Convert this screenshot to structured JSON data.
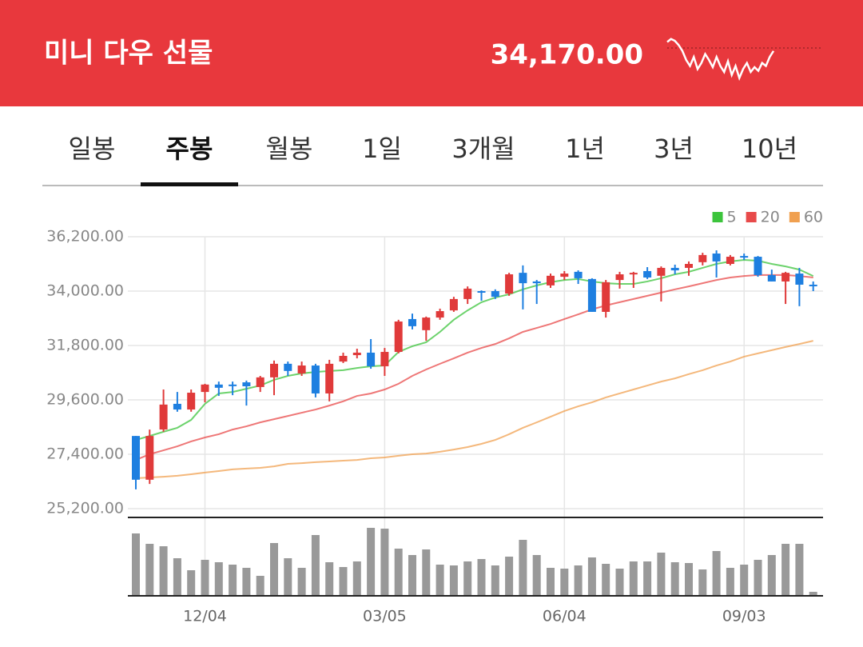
{
  "header": {
    "title": "미니 다우 선물",
    "price": "34,170.00",
    "sparkline": {
      "color": "#ffffff",
      "values": [
        70,
        75,
        72,
        65,
        55,
        40,
        30,
        45,
        25,
        35,
        50,
        40,
        28,
        45,
        30,
        20,
        38,
        15,
        30,
        10,
        25,
        35,
        20,
        28,
        22,
        35,
        30,
        45,
        55
      ],
      "reference": 60,
      "ylim": [
        0,
        100
      ]
    }
  },
  "tabs": {
    "items": [
      "일봉",
      "주봉",
      "월봉",
      "1일",
      "3개월",
      "1년",
      "3년",
      "10년"
    ],
    "selected": 1
  },
  "chart_data": {
    "type": "candlestick",
    "categories": [
      null,
      null,
      null,
      null,
      null,
      "12/04",
      null,
      null,
      null,
      null,
      null,
      null,
      null,
      null,
      null,
      null,
      null,
      null,
      "03/05",
      null,
      null,
      null,
      null,
      null,
      null,
      null,
      null,
      null,
      null,
      null,
      null,
      "06/04",
      null,
      null,
      null,
      null,
      null,
      null,
      null,
      null,
      null,
      null,
      null,
      null,
      "09/03",
      null,
      null,
      null,
      null,
      null
    ],
    "open": [
      28140,
      26370,
      28400,
      29440,
      29210,
      29920,
      30220,
      30220,
      30310,
      30120,
      30510,
      31060,
      30670,
      30990,
      29860,
      31150,
      31410,
      31510,
      30960,
      31540,
      32870,
      32420,
      32930,
      33220,
      33680,
      34000,
      34000,
      33900,
      34740,
      34390,
      34230,
      34580,
      34780,
      34490,
      33160,
      34450,
      34710,
      34810,
      34620,
      34940,
      34940,
      35170,
      35520,
      35100,
      35420,
      35390,
      34650,
      34390,
      34710,
      34260
    ],
    "high": [
      28140,
      28400,
      30020,
      29920,
      30020,
      30250,
      30340,
      30340,
      30380,
      30570,
      31190,
      31150,
      31150,
      31060,
      31220,
      31510,
      31670,
      32060,
      31700,
      32840,
      33090,
      32970,
      33290,
      33770,
      34190,
      34030,
      34070,
      34740,
      35040,
      34450,
      34710,
      34810,
      34840,
      34520,
      34450,
      34780,
      34780,
      34970,
      35000,
      35070,
      35200,
      35550,
      35650,
      35460,
      35520,
      35420,
      34870,
      34780,
      34940,
      34390
    ],
    "low": [
      25980,
      26200,
      28310,
      29120,
      29120,
      29500,
      29760,
      29790,
      29370,
      29920,
      29790,
      30570,
      30570,
      29700,
      29540,
      31090,
      31280,
      30860,
      30570,
      31480,
      32450,
      31990,
      32840,
      33160,
      33480,
      33610,
      33680,
      33810,
      33260,
      33480,
      34130,
      34450,
      34290,
      33160,
      32930,
      34100,
      34130,
      34490,
      33580,
      34680,
      34620,
      35040,
      34550,
      35040,
      35260,
      34580,
      34390,
      33480,
      33390,
      34000
    ],
    "close": [
      26370,
      28140,
      29410,
      29210,
      29890,
      30220,
      30090,
      30180,
      30150,
      30510,
      31060,
      30770,
      30990,
      29860,
      31060,
      31380,
      31510,
      30960,
      31540,
      32770,
      32580,
      32930,
      33190,
      33680,
      34100,
      33970,
      33770,
      34680,
      34320,
      34320,
      34620,
      34710,
      34520,
      33160,
      34360,
      34680,
      34740,
      34550,
      34940,
      34840,
      35100,
      35460,
      35200,
      35390,
      35360,
      34650,
      34390,
      34740,
      34260,
      34230
    ],
    "up_color": "#e03a3a",
    "down_color": "#1e7fe0",
    "series": [
      {
        "name": "5",
        "color": "#3cc43c",
        "values": [
          27980,
          28140,
          28310,
          28470,
          28790,
          29440,
          29860,
          29920,
          30050,
          30180,
          30410,
          30570,
          30670,
          30730,
          30770,
          30800,
          30890,
          30960,
          30990,
          31540,
          31770,
          31930,
          32350,
          32840,
          33220,
          33550,
          33740,
          33870,
          34070,
          34230,
          34360,
          34450,
          34490,
          34390,
          34320,
          34290,
          34290,
          34390,
          34520,
          34680,
          34780,
          34940,
          35100,
          35200,
          35260,
          35230,
          35100,
          35000,
          34870,
          34610
        ]
      },
      {
        "name": "20",
        "color": "#e84a4a",
        "values": [
          27170,
          27400,
          27560,
          27720,
          27920,
          28080,
          28210,
          28400,
          28530,
          28690,
          28820,
          28950,
          29080,
          29210,
          29370,
          29540,
          29760,
          29860,
          30020,
          30250,
          30570,
          30830,
          31060,
          31280,
          31510,
          31700,
          31860,
          32090,
          32350,
          32510,
          32670,
          32870,
          33060,
          33260,
          33420,
          33550,
          33680,
          33810,
          33940,
          34070,
          34190,
          34320,
          34450,
          34550,
          34610,
          34650,
          34650,
          34650,
          34610,
          34550
        ]
      },
      {
        "name": "60",
        "color": "#f0a050",
        "values": [
          26430,
          26460,
          26490,
          26530,
          26590,
          26660,
          26720,
          26790,
          26820,
          26850,
          26910,
          27010,
          27040,
          27080,
          27110,
          27140,
          27170,
          27240,
          27270,
          27340,
          27400,
          27430,
          27500,
          27590,
          27690,
          27820,
          27980,
          28210,
          28470,
          28690,
          28920,
          29150,
          29340,
          29500,
          29700,
          29860,
          30020,
          30180,
          30340,
          30470,
          30640,
          30800,
          30990,
          31150,
          31350,
          31480,
          31610,
          31740,
          31860,
          31990
        ]
      }
    ],
    "volume": {
      "color": "#999999",
      "values": [
        78,
        65,
        62,
        47,
        32,
        45,
        42,
        39,
        35,
        25,
        66,
        47,
        35,
        76,
        42,
        36,
        43,
        85,
        84,
        59,
        51,
        58,
        39,
        38,
        43,
        46,
        38,
        49,
        70,
        51,
        35,
        34,
        38,
        48,
        40,
        34,
        43,
        43,
        54,
        42,
        41,
        33,
        56,
        35,
        39,
        45,
        51,
        65,
        65,
        5
      ],
      "ylim": [
        0,
        90
      ]
    },
    "ylim": [
      25200,
      36200
    ],
    "yticks": [
      {
        "value": 36200,
        "label": "36,200.00"
      },
      {
        "value": 34000,
        "label": "34,000.00"
      },
      {
        "value": 31800,
        "label": "31,800.00"
      },
      {
        "value": 29600,
        "label": "29,600.00"
      },
      {
        "value": 27400,
        "label": "27,400.00"
      },
      {
        "value": 25200,
        "label": "25,200.00"
      }
    ],
    "grid": true,
    "legend": "top-right"
  }
}
